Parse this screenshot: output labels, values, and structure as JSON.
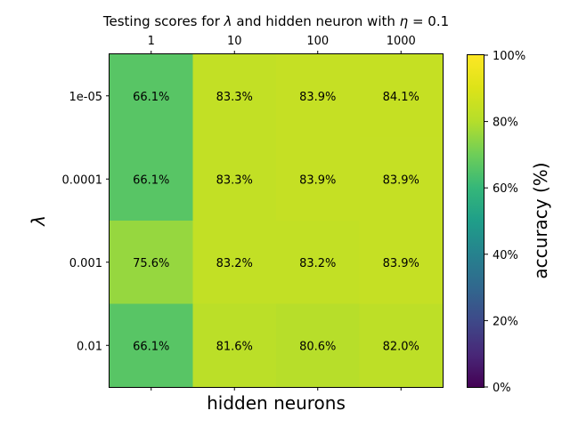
{
  "chart_data": {
    "type": "heatmap",
    "title_prefix": "Testing scores for ",
    "title_lambda": "λ",
    "title_middle": " and hidden neuron with ",
    "title_eta": "η",
    "title_suffix": " = 0.1",
    "xlabel": "hidden neurons",
    "ylabel": "λ",
    "x_categories": [
      "1",
      "10",
      "100",
      "1000"
    ],
    "x_ticks_position": "top",
    "y_categories": [
      "1e-05",
      "0.0001",
      "0.001",
      "0.01"
    ],
    "values": [
      [
        66.1,
        83.3,
        83.9,
        84.1
      ],
      [
        66.1,
        83.3,
        83.9,
        83.9
      ],
      [
        75.6,
        83.2,
        83.2,
        83.9
      ],
      [
        66.1,
        81.6,
        80.6,
        82.0
      ]
    ],
    "cell_labels": [
      [
        "66.1%",
        "83.3%",
        "83.9%",
        "84.1%"
      ],
      [
        "66.1%",
        "83.3%",
        "83.9%",
        "83.9%"
      ],
      [
        "75.6%",
        "83.2%",
        "83.2%",
        "83.9%"
      ],
      [
        "66.1%",
        "81.6%",
        "80.6%",
        "82.0%"
      ]
    ],
    "colorbar": {
      "label": "accuracy (%)",
      "range": [
        0,
        100
      ],
      "colormap": "viridis",
      "ticks": [
        "0%",
        "20%",
        "40%",
        "60%",
        "80%",
        "100%"
      ]
    },
    "grid": false
  }
}
